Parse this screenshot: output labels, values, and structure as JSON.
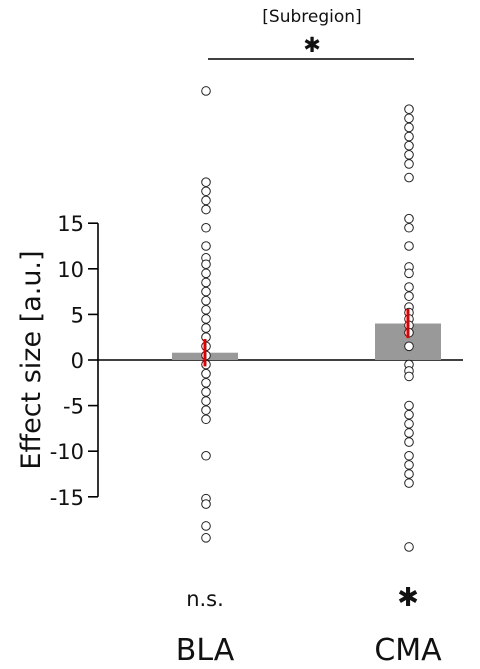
{
  "chart_data": {
    "type": "bar",
    "title": "",
    "ylabel": "Effect size [a.u.]",
    "xlabel": "",
    "ylim": [
      -21,
      30
    ],
    "yticks": [
      15,
      10,
      5,
      0,
      -5,
      -10,
      -15
    ],
    "ytick_labels": [
      "15",
      "10",
      "5",
      "0",
      "-5",
      "-10",
      "-15"
    ],
    "categories": [
      "BLA",
      "CMA"
    ],
    "values": [
      0.8,
      4.0
    ],
    "error": [
      [
        -0.7,
        2.3
      ],
      [
        2.4,
        5.6
      ]
    ],
    "significance": [
      "n.s.",
      "✱"
    ],
    "comparison": {
      "label": "[Subregion]",
      "marker": "✱",
      "between": [
        "BLA",
        "CMA"
      ]
    },
    "points": [
      [
        29.5,
        19.5,
        18.5,
        17.5,
        16.5,
        14.5,
        12.5,
        11.2,
        10.5,
        9.5,
        8.5,
        7.5,
        6.5,
        5.5,
        4.5,
        3.5,
        2.5,
        1.5,
        0.5,
        -0.5,
        -1.5,
        -2.5,
        -3.5,
        -4.5,
        -5.5,
        -6.5,
        -10.5,
        -15.2,
        -15.8,
        -18.2,
        -19.5
      ],
      [
        27.5,
        26.5,
        25.5,
        24.5,
        23.5,
        22.5,
        21.5,
        20.0,
        15.5,
        14.5,
        12.5,
        10.2,
        9.5,
        8.0,
        7.0,
        5.8,
        5.2,
        4.5,
        3.8,
        3.0,
        1.5,
        -0.5,
        -1.2,
        -1.8,
        -5.0,
        -6.0,
        -7.0,
        -8.0,
        -9.0,
        -10.5,
        -11.5,
        -12.5,
        -13.5,
        -20.5
      ]
    ],
    "colors": {
      "bar": "#999999",
      "error": "#e00000",
      "point_stroke": "#222222",
      "axis": "#000000"
    },
    "grid": false,
    "legend": "none"
  }
}
